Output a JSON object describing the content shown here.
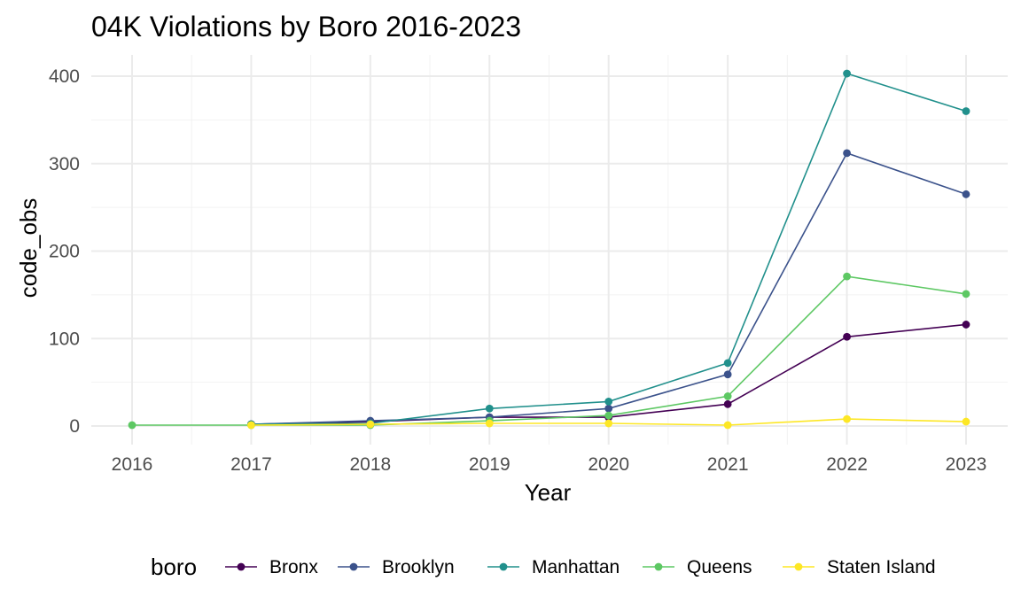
{
  "chart_data": {
    "type": "line",
    "title": "04K Violations by Boro 2016-2023",
    "xlabel": "Year",
    "ylabel": "code_obs",
    "x": [
      2016,
      2017,
      2018,
      2019,
      2020,
      2021,
      2022,
      2023
    ],
    "x_ticks": [
      "2016",
      "2017",
      "2018",
      "2019",
      "2020",
      "2021",
      "2022",
      "2023"
    ],
    "y_ticks": [
      "0",
      "100",
      "200",
      "300",
      "400"
    ],
    "ylim": [
      -20,
      425
    ],
    "grid": true,
    "legend_title": "boro",
    "legend_position": "bottom",
    "series": [
      {
        "name": "Bronx",
        "color": "#440154",
        "x": [
          2017,
          2018,
          2019,
          2020,
          2021,
          2022,
          2023
        ],
        "values": [
          2,
          5,
          10,
          10,
          25,
          102,
          116
        ]
      },
      {
        "name": "Brooklyn",
        "color": "#3B528B",
        "x": [
          2017,
          2018,
          2019,
          2020,
          2021,
          2022,
          2023
        ],
        "values": [
          2,
          6,
          10,
          20,
          59,
          312,
          265
        ]
      },
      {
        "name": "Manhattan",
        "color": "#21908C",
        "x": [
          2017,
          2018,
          2019,
          2020,
          2021,
          2022,
          2023
        ],
        "values": [
          2,
          3,
          20,
          28,
          72,
          403,
          360
        ]
      },
      {
        "name": "Queens",
        "color": "#5DC863",
        "x": [
          2016,
          2017,
          2018,
          2019,
          2020,
          2021,
          2022,
          2023
        ],
        "values": [
          1,
          1,
          1,
          6,
          12,
          34,
          171,
          151
        ]
      },
      {
        "name": "Staten Island",
        "color": "#FDE725",
        "x": [
          2017,
          2018,
          2019,
          2020,
          2021,
          2022,
          2023
        ],
        "values": [
          1,
          2,
          3,
          3,
          1,
          8,
          5
        ]
      }
    ]
  }
}
